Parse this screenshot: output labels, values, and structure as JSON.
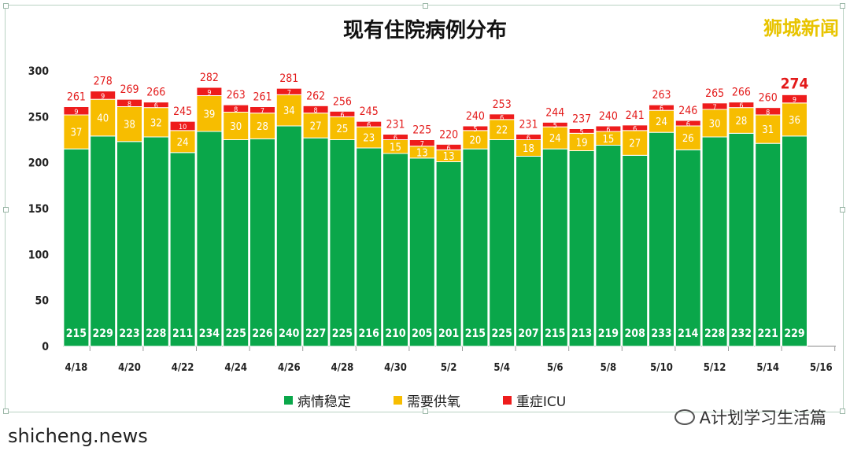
{
  "title": "现有住院病例分布",
  "watermark_top": "狮城新闻",
  "footer_left": "shicheng.news",
  "footer_right": "A计划学习生活篇",
  "legend": [
    {
      "label": "病情稳定",
      "color": "#0aa74a"
    },
    {
      "label": "需要供氧",
      "color": "#f7bd00"
    },
    {
      "label": "重症ICU",
      "color": "#ee1c1c"
    }
  ],
  "chart_data": {
    "type": "bar",
    "stacked": true,
    "title": "现有住院病例分布",
    "categories": [
      "4/18",
      "4/19",
      "4/20",
      "4/21",
      "4/22",
      "4/23",
      "4/24",
      "4/25",
      "4/26",
      "4/27",
      "4/28",
      "4/29",
      "4/30",
      "5/1",
      "5/2",
      "5/3",
      "5/4",
      "5/5",
      "5/6",
      "5/7",
      "5/8",
      "5/9",
      "5/10",
      "5/11",
      "5/12",
      "5/13",
      "5/14",
      "5/15"
    ],
    "x_tick_labels": [
      "4/18",
      "4/20",
      "4/22",
      "4/24",
      "4/26",
      "4/28",
      "4/30",
      "5/2",
      "5/4",
      "5/6",
      "5/8",
      "5/10",
      "5/12",
      "5/14",
      "5/16"
    ],
    "series": [
      {
        "name": "病情稳定",
        "color": "#0aa74a",
        "values": [
          215,
          229,
          223,
          228,
          211,
          234,
          225,
          226,
          240,
          227,
          225,
          216,
          210,
          205,
          201,
          215,
          225,
          207,
          215,
          213,
          219,
          208,
          233,
          214,
          228,
          232,
          221,
          229
        ]
      },
      {
        "name": "需要供氧",
        "color": "#f7bd00",
        "values": [
          37,
          40,
          38,
          32,
          24,
          39,
          30,
          28,
          34,
          27,
          25,
          23,
          15,
          13,
          13,
          20,
          22,
          18,
          24,
          19,
          15,
          27,
          24,
          26,
          30,
          28,
          31,
          36
        ]
      },
      {
        "name": "重症ICU",
        "color": "#ee1c1c",
        "values": [
          9,
          9,
          8,
          6,
          10,
          9,
          8,
          7,
          7,
          8,
          6,
          6,
          6,
          7,
          6,
          5,
          6,
          6,
          5,
          5,
          6,
          6,
          6,
          6,
          7,
          6,
          8,
          9
        ]
      }
    ],
    "totals": [
      261,
      278,
      269,
      266,
      245,
      282,
      263,
      261,
      281,
      262,
      256,
      245,
      231,
      225,
      220,
      240,
      253,
      231,
      244,
      237,
      240,
      241,
      263,
      246,
      265,
      266,
      260,
      274
    ],
    "y_ticks": [
      0,
      50,
      100,
      150,
      200,
      250,
      300
    ],
    "ylim": [
      0,
      300
    ],
    "legend_position": "bottom",
    "grid": false
  }
}
